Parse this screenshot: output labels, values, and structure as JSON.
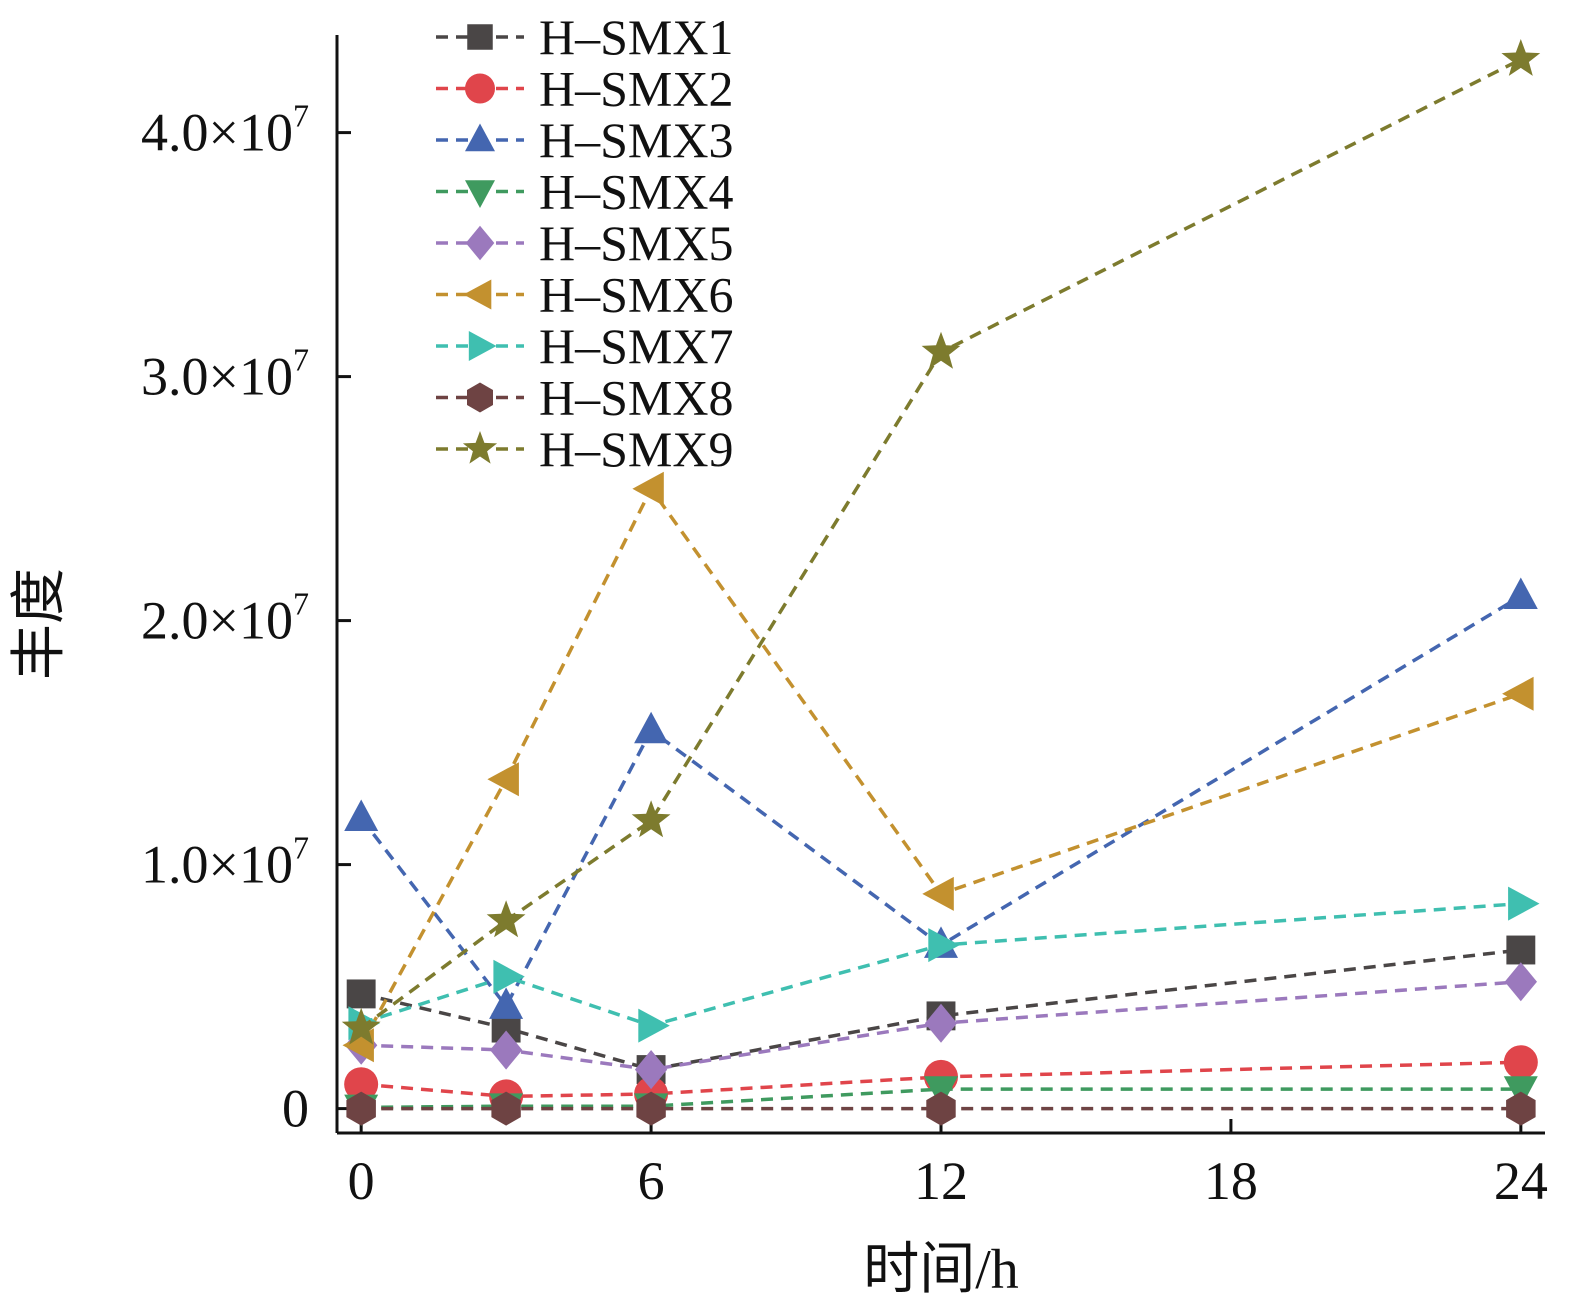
{
  "chart_data": {
    "type": "line",
    "title": "",
    "xlabel": "时间/h",
    "ylabel": "丰度",
    "x": [
      0,
      3,
      6,
      12,
      24
    ],
    "xlim": [
      -0.5,
      24.5
    ],
    "ylim": [
      -1000000,
      44000000
    ],
    "xticks": [
      0,
      6,
      12,
      18,
      24
    ],
    "xtick_labels": [
      "0",
      "6",
      "12",
      "18",
      "24"
    ],
    "yticks": [
      0,
      10000000,
      20000000,
      30000000,
      40000000
    ],
    "ytick_labels": [
      {
        "mantissa": "0",
        "exponent": ""
      },
      {
        "mantissa": "1.0×10",
        "exponent": "7"
      },
      {
        "mantissa": "2.0×10",
        "exponent": "7"
      },
      {
        "mantissa": "3.0×10",
        "exponent": "7"
      },
      {
        "mantissa": "4.0×10",
        "exponent": "7"
      }
    ],
    "grid": false,
    "legend_position": "top-left",
    "line_style": "dashed",
    "series": [
      {
        "name": "H–SMX1",
        "color": "#4a4646",
        "marker": "square",
        "values": [
          4700000,
          3300000,
          1600000,
          3800000,
          6500000
        ]
      },
      {
        "name": "H–SMX2",
        "color": "#e0454b",
        "marker": "circle",
        "values": [
          1000000,
          500000,
          600000,
          1300000,
          1900000
        ]
      },
      {
        "name": "H–SMX3",
        "color": "#4466b0",
        "marker": "triangle-up",
        "values": [
          11900000,
          4200000,
          15500000,
          6700000,
          21000000
        ]
      },
      {
        "name": "H–SMX4",
        "color": "#3f9a5f",
        "marker": "triangle-down",
        "values": [
          50000,
          100000,
          100000,
          800000,
          800000
        ]
      },
      {
        "name": "H–SMX5",
        "color": "#9b79bd",
        "marker": "diamond",
        "values": [
          2600000,
          2400000,
          1600000,
          3500000,
          5200000
        ]
      },
      {
        "name": "H–SMX6",
        "color": "#c3912f",
        "marker": "triangle-left",
        "values": [
          2600000,
          13500000,
          25400000,
          8800000,
          17000000
        ]
      },
      {
        "name": "H–SMX7",
        "color": "#3fbfb0",
        "marker": "triangle-right",
        "values": [
          3500000,
          5400000,
          3400000,
          6700000,
          8400000
        ]
      },
      {
        "name": "H–SMX8",
        "color": "#6e4343",
        "marker": "hexagon",
        "values": [
          0,
          0,
          0,
          0,
          0
        ]
      },
      {
        "name": "H–SMX9",
        "color": "#7d7b2e",
        "marker": "star",
        "values": [
          3300000,
          7700000,
          11800000,
          31000000,
          43000000
        ]
      }
    ]
  }
}
